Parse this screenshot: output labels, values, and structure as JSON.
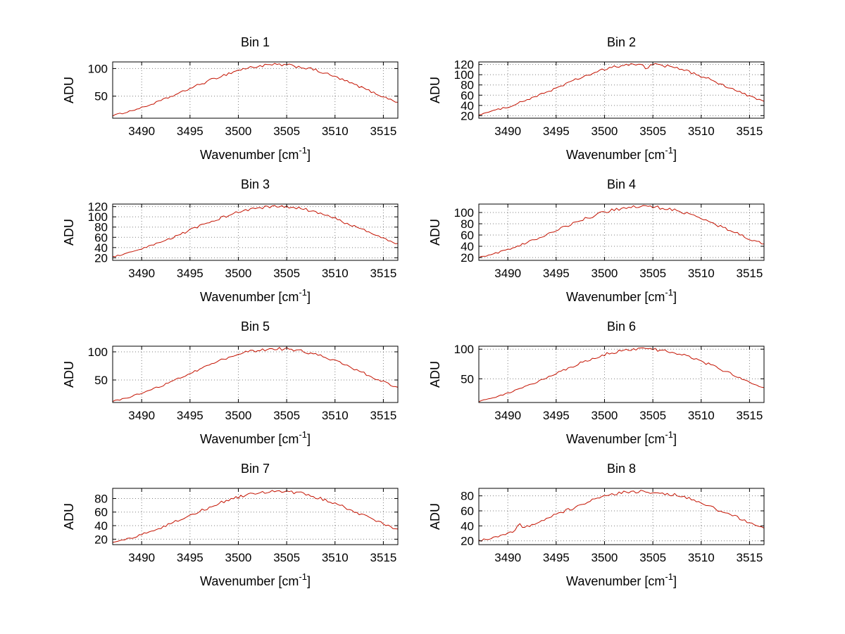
{
  "figure": {
    "background": "#ffffff",
    "rows": 4,
    "cols": 2
  },
  "chart_data": [
    {
      "type": "line",
      "title": "Bin 1",
      "xlabel": "Wavenumber [cm^-1]",
      "ylabel": "ADU",
      "xlim": [
        3487,
        3516.5
      ],
      "ylim": [
        10,
        112
      ],
      "grid": true,
      "line_color": "#c41200",
      "xticks": [
        3490,
        3495,
        3500,
        3505,
        3510,
        3515
      ],
      "yticks": [
        50,
        100
      ],
      "x": [
        3487,
        3488,
        3489,
        3490,
        3491,
        3492,
        3493,
        3494,
        3495,
        3496,
        3497,
        3498,
        3499,
        3500,
        3501,
        3502,
        3503,
        3504,
        3505,
        3506,
        3507,
        3508,
        3509,
        3510,
        3511,
        3512,
        3513,
        3514,
        3515,
        3516,
        3516.5
      ],
      "values": [
        15,
        19,
        24,
        29,
        35,
        42,
        49,
        56,
        64,
        71,
        78,
        85,
        91,
        97,
        101,
        104,
        106,
        107,
        106,
        104,
        101,
        97,
        91,
        85,
        78,
        71,
        64,
        56,
        49,
        42,
        39
      ],
      "spikes": []
    },
    {
      "type": "line",
      "title": "Bin 2",
      "xlabel": "Wavenumber [cm^-1]",
      "ylabel": "ADU",
      "xlim": [
        3487,
        3516.5
      ],
      "ylim": [
        15,
        125
      ],
      "grid": true,
      "line_color": "#c41200",
      "xticks": [
        3490,
        3495,
        3500,
        3505,
        3510,
        3515
      ],
      "yticks": [
        20,
        40,
        60,
        80,
        100,
        120
      ],
      "x": [
        3487,
        3488,
        3489,
        3490,
        3491,
        3492,
        3493,
        3494,
        3495,
        3496,
        3497,
        3498,
        3499,
        3500,
        3501,
        3502,
        3503,
        3504,
        3505,
        3506,
        3507,
        3508,
        3509,
        3510,
        3511,
        3512,
        3513,
        3514,
        3515,
        3516,
        3516.5
      ],
      "values": [
        22,
        27,
        32,
        37,
        44,
        51,
        58,
        66,
        74,
        82,
        90,
        97,
        104,
        110,
        115,
        118,
        120,
        121,
        120,
        118,
        115,
        110,
        104,
        97,
        90,
        82,
        74,
        66,
        58,
        51,
        48
      ],
      "spikes": [
        {
          "x": 3504.3,
          "dy": -10
        }
      ]
    },
    {
      "type": "line",
      "title": "Bin 3",
      "xlabel": "Wavenumber [cm^-1]",
      "ylabel": "ADU",
      "xlim": [
        3487,
        3516.5
      ],
      "ylim": [
        15,
        125
      ],
      "grid": true,
      "line_color": "#c41200",
      "xticks": [
        3490,
        3495,
        3500,
        3505,
        3510,
        3515
      ],
      "yticks": [
        20,
        40,
        60,
        80,
        100,
        120
      ],
      "x": [
        3487,
        3488,
        3489,
        3490,
        3491,
        3492,
        3493,
        3494,
        3495,
        3496,
        3497,
        3498,
        3499,
        3500,
        3501,
        3502,
        3503,
        3504,
        3505,
        3506,
        3507,
        3508,
        3509,
        3510,
        3511,
        3512,
        3513,
        3514,
        3515,
        3516,
        3516.5
      ],
      "values": [
        22,
        26,
        31,
        37,
        44,
        50,
        58,
        66,
        74,
        82,
        89,
        97,
        103,
        109,
        114,
        117,
        119,
        120,
        119,
        117,
        114,
        109,
        103,
        97,
        89,
        82,
        74,
        66,
        58,
        50,
        48
      ],
      "spikes": []
    },
    {
      "type": "line",
      "title": "Bin 4",
      "xlabel": "Wavenumber [cm^-1]",
      "ylabel": "ADU",
      "xlim": [
        3487,
        3516.5
      ],
      "ylim": [
        15,
        115
      ],
      "grid": true,
      "line_color": "#c41200",
      "xticks": [
        3490,
        3495,
        3500,
        3505,
        3510,
        3515
      ],
      "yticks": [
        20,
        40,
        60,
        80,
        100
      ],
      "x": [
        3487,
        3488,
        3489,
        3490,
        3491,
        3492,
        3493,
        3494,
        3495,
        3496,
        3497,
        3498,
        3499,
        3500,
        3501,
        3502,
        3503,
        3504,
        3505,
        3506,
        3507,
        3508,
        3509,
        3510,
        3511,
        3512,
        3513,
        3514,
        3515,
        3516,
        3516.5
      ],
      "values": [
        20,
        24,
        29,
        34,
        40,
        47,
        53,
        61,
        68,
        75,
        82,
        89,
        95,
        101,
        105,
        108,
        110,
        111,
        110,
        108,
        105,
        101,
        95,
        89,
        82,
        75,
        68,
        61,
        53,
        47,
        44
      ],
      "spikes": []
    },
    {
      "type": "line",
      "title": "Bin 5",
      "xlabel": "Wavenumber [cm^-1]",
      "ylabel": "ADU",
      "xlim": [
        3487,
        3516.5
      ],
      "ylim": [
        10,
        110
      ],
      "grid": true,
      "line_color": "#c41200",
      "xticks": [
        3490,
        3495,
        3500,
        3505,
        3510,
        3515
      ],
      "yticks": [
        50,
        100
      ],
      "x": [
        3487,
        3488,
        3489,
        3490,
        3491,
        3492,
        3493,
        3494,
        3495,
        3496,
        3497,
        3498,
        3499,
        3500,
        3501,
        3502,
        3503,
        3504,
        3505,
        3506,
        3507,
        3508,
        3509,
        3510,
        3511,
        3512,
        3513,
        3514,
        3515,
        3516,
        3516.5
      ],
      "values": [
        12,
        16,
        21,
        27,
        33,
        39,
        47,
        54,
        62,
        69,
        77,
        84,
        90,
        95,
        100,
        103,
        105,
        106,
        105,
        103,
        100,
        95,
        90,
        84,
        77,
        69,
        62,
        54,
        47,
        39,
        37
      ],
      "spikes": []
    },
    {
      "type": "line",
      "title": "Bin 6",
      "xlabel": "Wavenumber [cm^-1]",
      "ylabel": "ADU",
      "xlim": [
        3487,
        3516.5
      ],
      "ylim": [
        10,
        105
      ],
      "grid": true,
      "line_color": "#c41200",
      "xticks": [
        3490,
        3495,
        3500,
        3505,
        3510,
        3515
      ],
      "yticks": [
        50,
        100
      ],
      "x": [
        3487,
        3488,
        3489,
        3490,
        3491,
        3492,
        3493,
        3494,
        3495,
        3496,
        3497,
        3498,
        3499,
        3500,
        3501,
        3502,
        3503,
        3504,
        3505,
        3506,
        3507,
        3508,
        3509,
        3510,
        3511,
        3512,
        3513,
        3514,
        3515,
        3516,
        3516.5
      ],
      "values": [
        12,
        16,
        21,
        26,
        32,
        38,
        45,
        52,
        59,
        66,
        73,
        80,
        86,
        91,
        95,
        98,
        100,
        101,
        100,
        98,
        95,
        91,
        86,
        80,
        73,
        66,
        59,
        52,
        45,
        38,
        35
      ],
      "spikes": []
    },
    {
      "type": "line",
      "title": "Bin 7",
      "xlabel": "Wavenumber [cm^-1]",
      "ylabel": "ADU",
      "xlim": [
        3487,
        3516.5
      ],
      "ylim": [
        12,
        95
      ],
      "grid": true,
      "line_color": "#c41200",
      "xticks": [
        3490,
        3495,
        3500,
        3505,
        3510,
        3515
      ],
      "yticks": [
        20,
        40,
        60,
        80
      ],
      "x": [
        3487,
        3488,
        3489,
        3490,
        3491,
        3492,
        3493,
        3494,
        3495,
        3496,
        3497,
        3498,
        3499,
        3500,
        3501,
        3502,
        3503,
        3504,
        3505,
        3506,
        3507,
        3508,
        3509,
        3510,
        3511,
        3512,
        3513,
        3514,
        3515,
        3516,
        3516.5
      ],
      "values": [
        15,
        18,
        22,
        27,
        32,
        37,
        43,
        49,
        55,
        61,
        67,
        73,
        78,
        82,
        86,
        89,
        90,
        91,
        90,
        89,
        86,
        82,
        78,
        73,
        67,
        61,
        55,
        49,
        43,
        37,
        35
      ],
      "spikes": []
    },
    {
      "type": "line",
      "title": "Bin 8",
      "xlabel": "Wavenumber [cm^-1]",
      "ylabel": "ADU",
      "xlim": [
        3487,
        3516.5
      ],
      "ylim": [
        15,
        90
      ],
      "grid": true,
      "line_color": "#c41200",
      "xticks": [
        3490,
        3495,
        3500,
        3505,
        3510,
        3515
      ],
      "yticks": [
        20,
        40,
        60,
        80
      ],
      "x": [
        3487,
        3488,
        3489,
        3490,
        3491,
        3492,
        3493,
        3494,
        3495,
        3496,
        3497,
        3498,
        3499,
        3500,
        3501,
        3502,
        3503,
        3504,
        3505,
        3506,
        3507,
        3508,
        3509,
        3510,
        3511,
        3512,
        3513,
        3514,
        3515,
        3516,
        3516.5
      ],
      "values": [
        20,
        23,
        26,
        30,
        35,
        39,
        44,
        50,
        55,
        60,
        65,
        70,
        75,
        79,
        82,
        84,
        85,
        86,
        85,
        84,
        82,
        79,
        75,
        70,
        65,
        60,
        55,
        50,
        44,
        39,
        37
      ],
      "spikes": [
        {
          "x": 3491.2,
          "dy": 8
        }
      ]
    }
  ]
}
